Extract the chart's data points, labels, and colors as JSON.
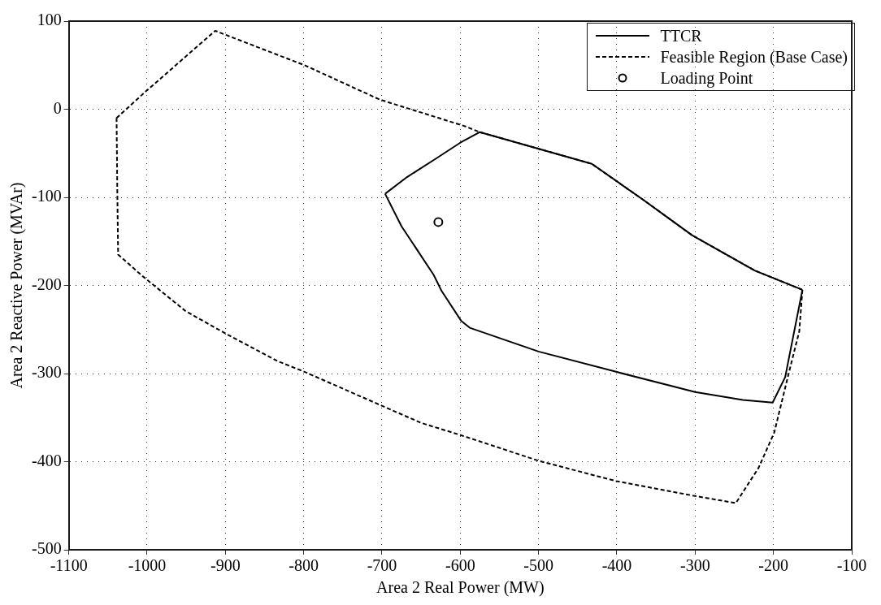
{
  "chart_data": {
    "type": "line",
    "xlabel": "Area 2 Real Power (MW)",
    "ylabel": "Area 2 Reactive Power (MVAr)",
    "xlim": [
      -1100,
      -100
    ],
    "xticks": [
      -1100,
      -1000,
      -900,
      -800,
      -700,
      -600,
      -500,
      -400,
      -300,
      -200,
      -100
    ],
    "ylim": [
      -500,
      100
    ],
    "yticks": [
      -500,
      -400,
      -300,
      -200,
      -100,
      0,
      100
    ],
    "grid": true,
    "legend": "top right",
    "series": [
      {
        "name": "TTCR",
        "type": "line",
        "color": "#000000",
        "line_style": "solid",
        "marker": "none",
        "x": [
          -696,
          -668,
          -631,
          -600,
          -575,
          -432,
          -366,
          -304,
          -224,
          -163
        ],
        "values": [
          -96,
          -77,
          -56,
          -38,
          -26,
          -62,
          -103,
          -143,
          -183,
          -205
        ]
      },
      {
        "type": "line",
        "color": "#000000",
        "line_style": "solid",
        "marker": "none",
        "x": [
          -163,
          -185,
          -201,
          -239,
          -300,
          -401,
          -500,
          -588,
          -599,
          -624,
          -634,
          -657,
          -675,
          -696
        ],
        "values": [
          -205,
          -304,
          -333,
          -330,
          -321,
          -298,
          -275,
          -248,
          -240,
          -206,
          -188,
          -157,
          -133,
          -96
        ]
      },
      {
        "name": "Feasible Region (Base Case)",
        "type": "line",
        "color": "#000000",
        "line_style": "dashed",
        "marker": "none",
        "x": [
          -1039,
          -1002,
          -913,
          -799,
          -703,
          -595,
          -575,
          -432,
          -366,
          -304,
          -224,
          -163
        ],
        "values": [
          -10,
          20,
          89,
          50,
          11,
          -19,
          -26,
          -62,
          -103,
          -143,
          -183,
          -205
        ]
      },
      {
        "type": "line",
        "color": "#000000",
        "line_style": "dashed",
        "marker": "none",
        "x": [
          -163,
          -167,
          -180,
          -199,
          -219,
          -248,
          -300,
          -401,
          -500,
          -599,
          -650,
          -699,
          -799,
          -833,
          -899,
          -951,
          -1005,
          -1037,
          -1038,
          -1039
        ],
        "values": [
          -205,
          -252,
          -298,
          -367,
          -407,
          -447,
          -439,
          -422,
          -399,
          -370,
          -356,
          -337,
          -298,
          -286,
          -255,
          -229,
          -190,
          -165,
          -96,
          -10
        ]
      },
      {
        "name": "Loading Point",
        "type": "scatter",
        "color": "#000000",
        "marker": "circle",
        "x": [
          -628
        ],
        "values": [
          -128
        ]
      }
    ]
  }
}
